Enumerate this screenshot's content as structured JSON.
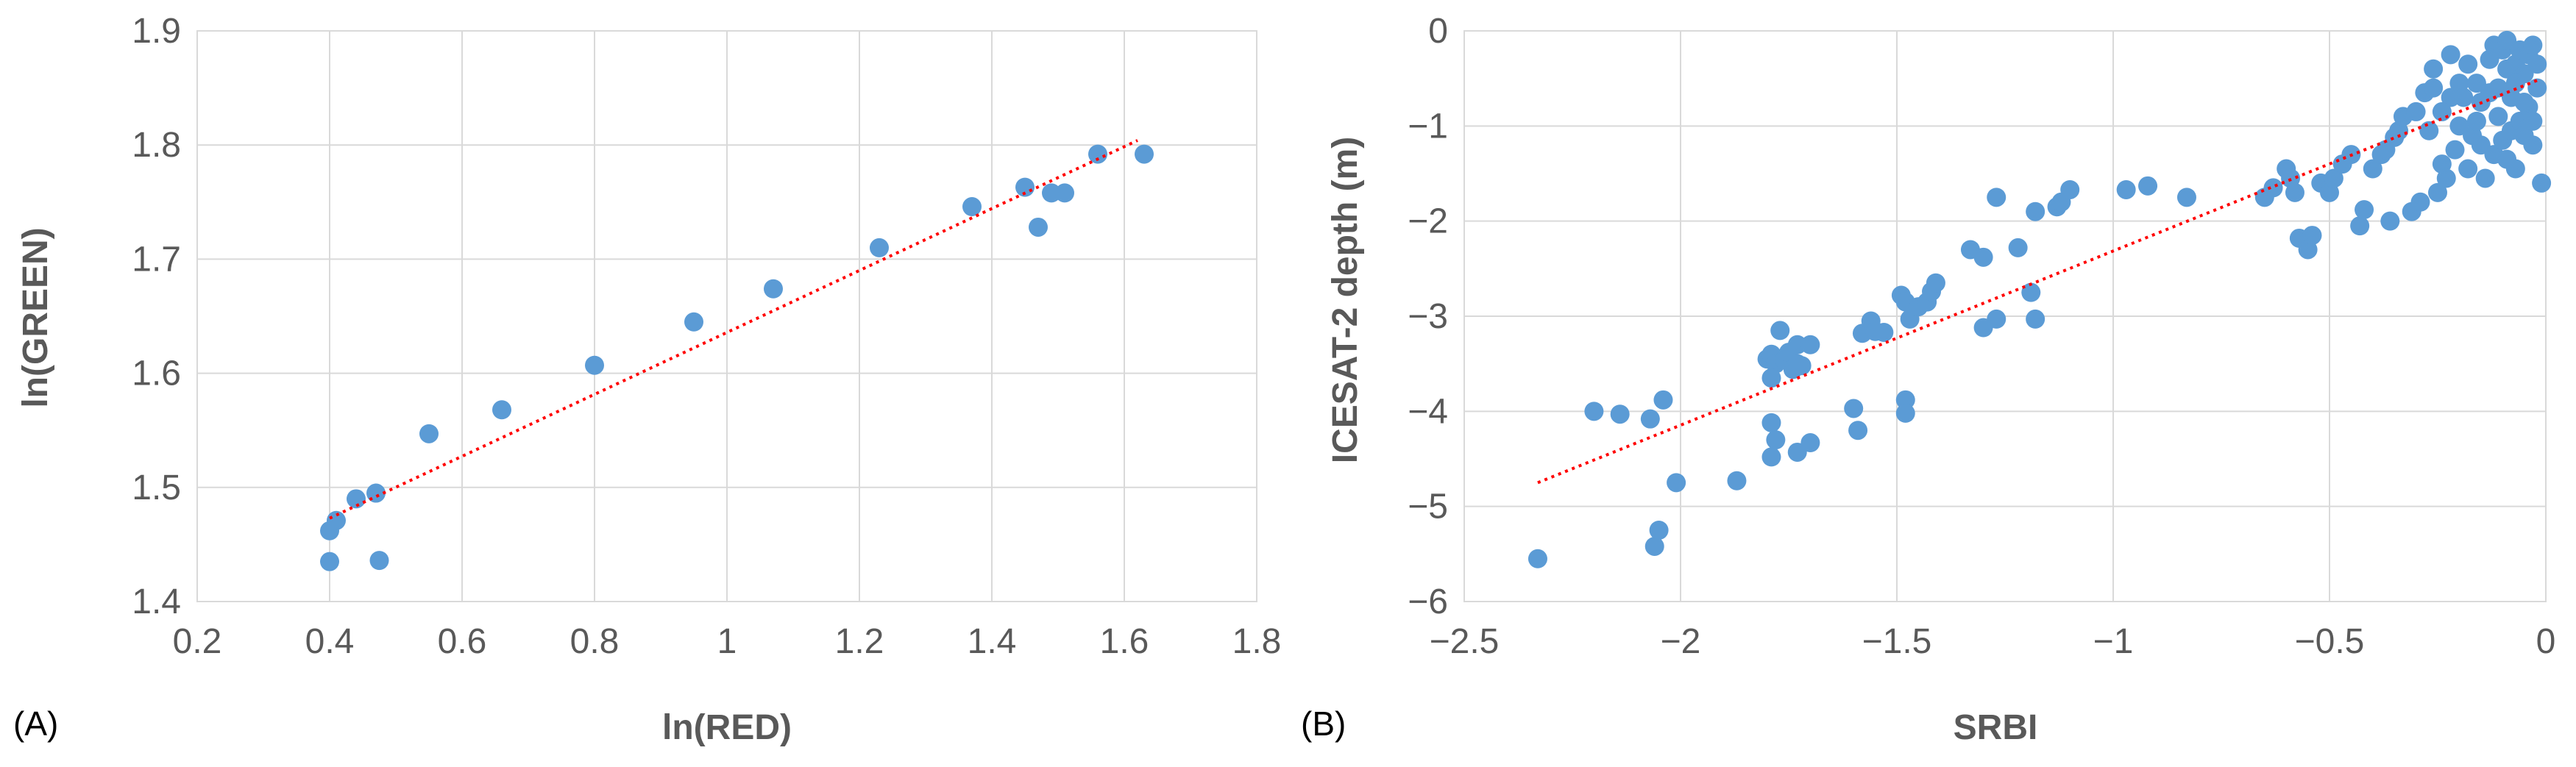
{
  "chart_data": [
    {
      "type": "scatter",
      "panel_label": "(A)",
      "title": "",
      "xlabel": "ln(RED)",
      "ylabel": "ln(GREEN)",
      "xlim": [
        0.2,
        1.8
      ],
      "ylim": [
        1.4,
        1.9
      ],
      "xticks": [
        0.2,
        0.4,
        0.6,
        0.8,
        1.0,
        1.2,
        1.4,
        1.6,
        1.8
      ],
      "xtick_labels": [
        "0.2",
        "0.4",
        "0.6",
        "0.8",
        "1",
        "1.2",
        "1.4",
        "1.6",
        "1.8"
      ],
      "yticks": [
        1.4,
        1.5,
        1.6,
        1.7,
        1.8,
        1.9
      ],
      "ytick_labels": [
        "1.4",
        "1.5",
        "1.6",
        "1.7",
        "1.8",
        "1.9"
      ],
      "grid": true,
      "marker_color": "#5b9bd5",
      "trendline": {
        "style": "dotted",
        "color": "#ff0000",
        "x": [
          0.4,
          1.62
        ],
        "y": [
          1.473,
          1.804
        ]
      },
      "points": [
        [
          0.4,
          1.435
        ],
        [
          0.4,
          1.462
        ],
        [
          0.41,
          1.471
        ],
        [
          0.44,
          1.49
        ],
        [
          0.47,
          1.495
        ],
        [
          0.475,
          1.436
        ],
        [
          0.55,
          1.547
        ],
        [
          0.66,
          1.568
        ],
        [
          0.8,
          1.607
        ],
        [
          0.95,
          1.645
        ],
        [
          1.07,
          1.674
        ],
        [
          1.23,
          1.71
        ],
        [
          1.37,
          1.746
        ],
        [
          1.45,
          1.763
        ],
        [
          1.47,
          1.728
        ],
        [
          1.49,
          1.758
        ],
        [
          1.51,
          1.758
        ],
        [
          1.56,
          1.792
        ],
        [
          1.63,
          1.792
        ]
      ]
    },
    {
      "type": "scatter",
      "panel_label": "(B)",
      "title": "",
      "xlabel": "SRBI",
      "ylabel": "ICESAT-2 depth (m)",
      "xlim": [
        -2.5,
        0
      ],
      "ylim": [
        -6,
        0
      ],
      "xticks": [
        -2.5,
        -2,
        -1.5,
        -1,
        -0.5,
        0
      ],
      "xtick_labels": [
        "−2.5",
        "−2",
        "−1.5",
        "−1",
        "−0.5",
        "0"
      ],
      "yticks": [
        -6,
        -5,
        -4,
        -3,
        -2,
        -1,
        0
      ],
      "ytick_labels": [
        "−6",
        "−5",
        "−4",
        "−3",
        "−2",
        "−1",
        "0"
      ],
      "grid": true,
      "marker_color": "#5b9bd5",
      "trendline": {
        "style": "dotted",
        "color": "#ff0000",
        "x": [
          -2.33,
          -0.02
        ],
        "y": [
          -4.75,
          -0.52
        ]
      },
      "points": [
        [
          -2.33,
          -5.55
        ],
        [
          -2.2,
          -4.0
        ],
        [
          -2.14,
          -4.03
        ],
        [
          -2.07,
          -4.08
        ],
        [
          -2.06,
          -5.42
        ],
        [
          -2.05,
          -5.25
        ],
        [
          -2.04,
          -3.88
        ],
        [
          -2.01,
          -4.75
        ],
        [
          -1.87,
          -4.73
        ],
        [
          -1.79,
          -4.12
        ],
        [
          -1.79,
          -4.48
        ],
        [
          -1.78,
          -4.3
        ],
        [
          -1.8,
          -3.45
        ],
        [
          -1.79,
          -3.4
        ],
        [
          -1.78,
          -3.5
        ],
        [
          -1.77,
          -3.15
        ],
        [
          -1.76,
          -3.46
        ],
        [
          -1.75,
          -3.38
        ],
        [
          -1.74,
          -3.56
        ],
        [
          -1.73,
          -3.5
        ],
        [
          -1.73,
          -3.3
        ],
        [
          -1.72,
          -3.52
        ],
        [
          -1.79,
          -3.65
        ],
        [
          -1.73,
          -4.43
        ],
        [
          -1.7,
          -4.33
        ],
        [
          -1.7,
          -3.3
        ],
        [
          -1.6,
          -3.97
        ],
        [
          -1.59,
          -4.2
        ],
        [
          -1.58,
          -3.18
        ],
        [
          -1.56,
          -3.05
        ],
        [
          -1.55,
          -3.16
        ],
        [
          -1.53,
          -3.17
        ],
        [
          -1.49,
          -2.78
        ],
        [
          -1.48,
          -2.85
        ],
        [
          -1.48,
          -3.88
        ],
        [
          -1.48,
          -4.02
        ],
        [
          -1.47,
          -3.03
        ],
        [
          -1.45,
          -2.9
        ],
        [
          -1.43,
          -2.85
        ],
        [
          -1.42,
          -2.74
        ],
        [
          -1.41,
          -2.65
        ],
        [
          -1.33,
          -2.3
        ],
        [
          -1.3,
          -2.38
        ],
        [
          -1.3,
          -3.12
        ],
        [
          -1.27,
          -3.03
        ],
        [
          -1.27,
          -1.75
        ],
        [
          -1.22,
          -2.28
        ],
        [
          -1.19,
          -2.75
        ],
        [
          -1.18,
          -3.03
        ],
        [
          -1.18,
          -1.9
        ],
        [
          -1.13,
          -1.85
        ],
        [
          -1.12,
          -1.8
        ],
        [
          -1.1,
          -1.67
        ],
        [
          -0.97,
          -1.67
        ],
        [
          -0.92,
          -1.63
        ],
        [
          -0.83,
          -1.75
        ],
        [
          -0.65,
          -1.75
        ],
        [
          -0.63,
          -1.65
        ],
        [
          -0.6,
          -1.45
        ],
        [
          -0.59,
          -1.55
        ],
        [
          -0.58,
          -1.7
        ],
        [
          -0.57,
          -2.18
        ],
        [
          -0.55,
          -2.3
        ],
        [
          -0.54,
          -2.15
        ],
        [
          -0.52,
          -1.6
        ],
        [
          -0.5,
          -1.7
        ],
        [
          -0.49,
          -1.55
        ],
        [
          -0.47,
          -1.4
        ],
        [
          -0.45,
          -1.3
        ],
        [
          -0.43,
          -2.05
        ],
        [
          -0.42,
          -1.88
        ],
        [
          -0.4,
          -1.45
        ],
        [
          -0.38,
          -1.3
        ],
        [
          -0.37,
          -1.25
        ],
        [
          -0.36,
          -2.0
        ],
        [
          -0.35,
          -1.12
        ],
        [
          -0.34,
          -1.05
        ],
        [
          -0.33,
          -0.9
        ],
        [
          -0.31,
          -1.9
        ],
        [
          -0.3,
          -0.85
        ],
        [
          -0.29,
          -1.8
        ],
        [
          -0.28,
          -0.65
        ],
        [
          -0.27,
          -1.05
        ],
        [
          -0.26,
          -0.4
        ],
        [
          -0.25,
          -1.7
        ],
        [
          -0.24,
          -1.4
        ],
        [
          -0.23,
          -1.55
        ],
        [
          -0.22,
          -0.7
        ],
        [
          -0.21,
          -1.25
        ],
        [
          -0.2,
          -0.55
        ],
        [
          -0.19,
          -0.7
        ],
        [
          -0.18,
          -1.45
        ],
        [
          -0.17,
          -1.1
        ],
        [
          -0.16,
          -0.55
        ],
        [
          -0.15,
          -1.2
        ],
        [
          -0.15,
          -0.75
        ],
        [
          -0.14,
          -1.55
        ],
        [
          -0.13,
          -0.3
        ],
        [
          -0.12,
          -1.3
        ],
        [
          -0.12,
          -0.15
        ],
        [
          -0.11,
          -0.6
        ],
        [
          -0.1,
          -1.15
        ],
        [
          -0.1,
          -0.2
        ],
        [
          -0.09,
          -0.4
        ],
        [
          -0.09,
          -0.1
        ],
        [
          -0.08,
          -1.05
        ],
        [
          -0.08,
          -0.7
        ],
        [
          -0.07,
          -1.45
        ],
        [
          -0.07,
          -0.35
        ],
        [
          -0.06,
          -0.95
        ],
        [
          -0.06,
          -0.2
        ],
        [
          -0.05,
          -1.1
        ],
        [
          -0.05,
          -0.45
        ],
        [
          -0.04,
          -0.25
        ],
        [
          -0.04,
          -0.8
        ],
        [
          -0.03,
          -1.2
        ],
        [
          -0.03,
          -0.15
        ],
        [
          -0.02,
          -0.6
        ],
        [
          -0.02,
          -0.35
        ],
        [
          -0.01,
          -1.6
        ],
        [
          -0.16,
          -0.95
        ],
        [
          -0.18,
          -0.35
        ],
        [
          -0.2,
          -1.0
        ],
        [
          -0.22,
          -0.25
        ],
        [
          -0.24,
          -0.85
        ],
        [
          -0.26,
          -0.6
        ],
        [
          -0.13,
          -0.65
        ],
        [
          -0.11,
          -0.9
        ],
        [
          -0.09,
          -1.35
        ],
        [
          -0.07,
          -0.55
        ],
        [
          -0.05,
          -0.75
        ],
        [
          -0.03,
          -0.95
        ]
      ]
    }
  ]
}
